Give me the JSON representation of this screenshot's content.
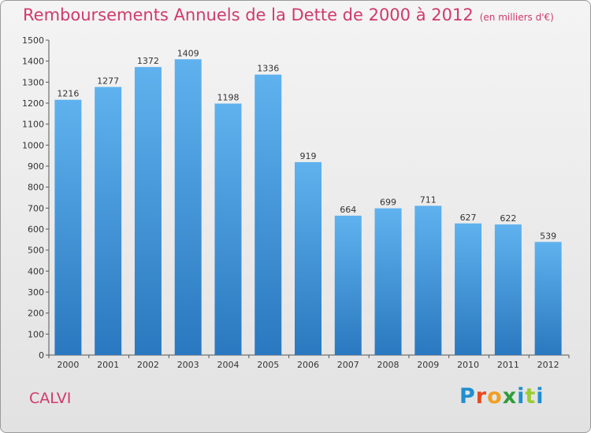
{
  "chart_data": {
    "type": "bar",
    "title": "Remboursements Annuels de la Dette de 2000 à 2012",
    "subtitle": "(en milliers d'€)",
    "categories": [
      "2000",
      "2001",
      "2002",
      "2003",
      "2004",
      "2005",
      "2006",
      "2007",
      "2008",
      "2009",
      "2010",
      "2011",
      "2012"
    ],
    "values": [
      1216,
      1277,
      1372,
      1409,
      1198,
      1336,
      919,
      664,
      699,
      711,
      627,
      622,
      539
    ],
    "ylim": [
      0,
      1500
    ],
    "yticks": [
      0,
      100,
      200,
      300,
      400,
      500,
      600,
      700,
      800,
      900,
      1000,
      1100,
      1200,
      1300,
      1400,
      1500
    ],
    "grid": false,
    "legend": "none",
    "bar_color": "#4a9fe0"
  },
  "commune": "CALVI",
  "logo": {
    "letters": [
      "P",
      "r",
      "o",
      "x",
      "i",
      "t",
      "i"
    ],
    "colors": [
      "#1f8fcf",
      "#e8491d",
      "#f0a020",
      "#2f9d3a",
      "#1f8fcf",
      "#9acd32",
      "#1f8fcf"
    ]
  }
}
